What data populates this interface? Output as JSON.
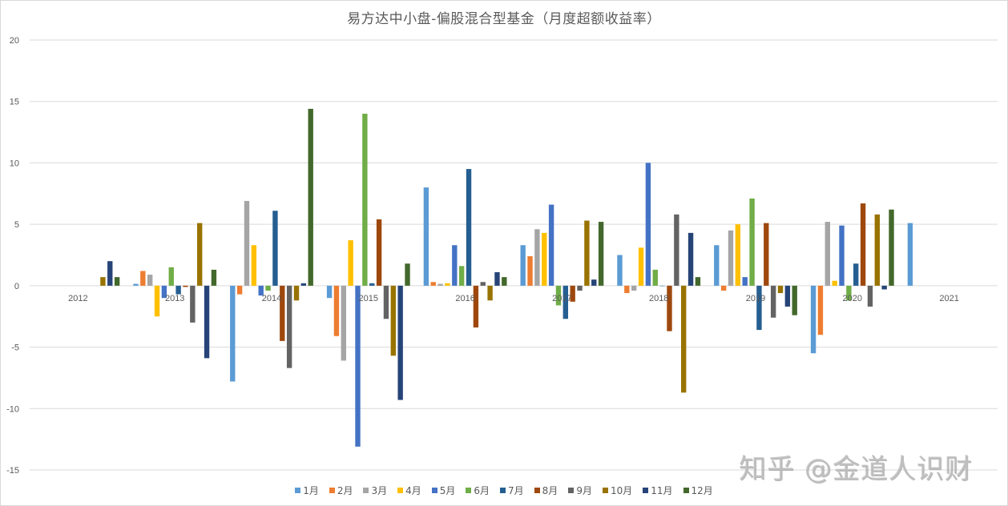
{
  "chart_data": {
    "type": "bar",
    "title": "易方达中小盘-偏股混合型基金（月度超额收益率）",
    "xlabel": "",
    "ylabel": "",
    "ylim": [
      -15,
      20
    ],
    "yticks": [
      20,
      15,
      10,
      5,
      0,
      -5,
      -10,
      -15
    ],
    "grid": true,
    "legend_position": "bottom",
    "categories": [
      "2012",
      "2013",
      "2014",
      "2015",
      "2016",
      "2017",
      "2018",
      "2019",
      "2020",
      "2021"
    ],
    "series": [
      {
        "name": "1月",
        "color": "#5B9BD5",
        "values": [
          null,
          0.15,
          -7.8,
          -1.0,
          8.0,
          3.3,
          2.5,
          3.3,
          -5.5,
          5.1
        ]
      },
      {
        "name": "2月",
        "color": "#ED7D31",
        "values": [
          null,
          1.2,
          -0.7,
          -4.1,
          0.3,
          2.4,
          -0.6,
          -0.4,
          -4.0,
          null
        ]
      },
      {
        "name": "3月",
        "color": "#A5A5A5",
        "values": [
          null,
          0.9,
          6.9,
          -6.1,
          0.15,
          4.6,
          -0.4,
          4.5,
          5.2,
          null
        ]
      },
      {
        "name": "4月",
        "color": "#FFC000",
        "values": [
          null,
          -2.5,
          3.3,
          3.7,
          0.2,
          4.3,
          3.1,
          5.0,
          0.4,
          null
        ]
      },
      {
        "name": "5月",
        "color": "#4472C4",
        "values": [
          null,
          -1.0,
          -0.8,
          -13.1,
          3.3,
          6.6,
          10.0,
          0.7,
          4.9,
          null
        ]
      },
      {
        "name": "6月",
        "color": "#70AD47",
        "values": [
          null,
          1.5,
          -0.4,
          14.0,
          1.6,
          -1.6,
          1.3,
          7.1,
          -1.2,
          null
        ]
      },
      {
        "name": "7月",
        "color": "#255E91",
        "values": [
          null,
          -0.7,
          6.1,
          0.2,
          9.5,
          -2.7,
          0,
          -3.6,
          1.8,
          null
        ]
      },
      {
        "name": "8月",
        "color": "#9E480E",
        "values": [
          null,
          -0.1,
          -4.5,
          5.4,
          -3.4,
          -1.3,
          -3.7,
          5.1,
          6.7,
          null
        ]
      },
      {
        "name": "9月",
        "color": "#636363",
        "values": [
          null,
          -3.0,
          -6.7,
          -2.7,
          0.3,
          -0.4,
          5.8,
          -2.6,
          -1.7,
          null
        ]
      },
      {
        "name": "10月",
        "color": "#997300",
        "values": [
          0.7,
          5.1,
          -1.2,
          -5.7,
          -1.2,
          5.3,
          -8.7,
          -0.6,
          5.8,
          null
        ]
      },
      {
        "name": "11月",
        "color": "#264478",
        "values": [
          2.0,
          -5.9,
          0.2,
          -9.3,
          1.1,
          0.5,
          4.3,
          -1.7,
          -0.3,
          null
        ]
      },
      {
        "name": "12月",
        "color": "#43682B",
        "values": [
          0.7,
          1.3,
          14.4,
          1.8,
          0.7,
          5.2,
          0.7,
          -2.4,
          6.2,
          null
        ]
      }
    ]
  },
  "watermark": "知乎 @金道人识财"
}
